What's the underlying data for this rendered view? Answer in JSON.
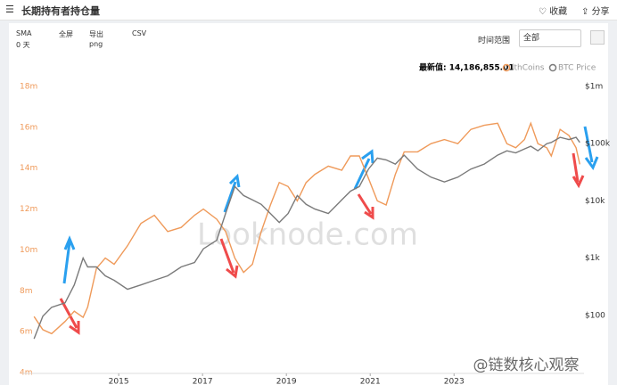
{
  "header": {
    "title": "长期持有者持仓量",
    "favorite": "收藏",
    "share": "分享"
  },
  "toolbar": {
    "sma_label": "SMA",
    "sma_value": "0 天",
    "fullscreen": "全屏",
    "export": "导出",
    "export_format": "png",
    "csv": "CSV",
    "range_label": "时间范围",
    "range_value": "全部"
  },
  "latest": "最新值: 14,186,855.01",
  "watermark": "Looknode.com",
  "source": "@链数核心观察",
  "chart_data": {
    "type": "line",
    "log_y2": true,
    "grid": false,
    "xlim": [
      2012.7,
      2026.1
    ],
    "xticks": [
      2015,
      2017,
      2019,
      2021,
      2023
    ],
    "ylim": [
      4,
      18
    ],
    "yticks": [
      {
        "value": 4,
        "label": "4m"
      },
      {
        "value": 6,
        "label": "6m"
      },
      {
        "value": 8,
        "label": "8m"
      },
      {
        "value": 10,
        "label": "10m"
      },
      {
        "value": 12,
        "label": "12m"
      },
      {
        "value": 14,
        "label": "14m"
      },
      {
        "value": 16,
        "label": "16m"
      },
      {
        "value": 18,
        "label": "18m"
      }
    ],
    "y2lim": [
      10,
      1000000
    ],
    "y2ticks": [
      {
        "value": 100,
        "label": "$100"
      },
      {
        "value": 1000,
        "label": "$1k"
      },
      {
        "value": 10000,
        "label": "$10k"
      },
      {
        "value": 100000,
        "label": "$100k"
      },
      {
        "value": 1000000,
        "label": "$1m"
      }
    ],
    "x": [
      2012.98,
      2013.19,
      2013.4,
      2013.72,
      2013.94,
      2014.15,
      2014.26,
      2014.47,
      2014.68,
      2014.89,
      2015.21,
      2015.53,
      2015.85,
      2016.17,
      2016.49,
      2016.81,
      2017.02,
      2017.34,
      2017.55,
      2017.77,
      2017.98,
      2018.19,
      2018.4,
      2018.62,
      2018.83,
      2019.04,
      2019.26,
      2019.47,
      2019.68,
      2020.0,
      2020.32,
      2020.53,
      2020.74,
      2020.96,
      2021.17,
      2021.38,
      2021.6,
      2021.81,
      2022.13,
      2022.45,
      2022.77,
      2023.09,
      2023.4,
      2023.72,
      2024.04,
      2024.26,
      2024.47,
      2024.68,
      2024.83,
      2025.0,
      2025.21,
      2025.32,
      2025.53,
      2025.74,
      2025.91,
      2026.0
    ],
    "series": [
      {
        "name": "lthCoins",
        "color": "#ef9a5a",
        "values": [
          6.74,
          6.1,
          5.9,
          6.5,
          7.0,
          6.7,
          7.2,
          9.1,
          9.6,
          9.3,
          10.2,
          11.3,
          11.7,
          10.9,
          11.1,
          11.7,
          12.0,
          11.5,
          10.9,
          9.6,
          8.9,
          9.3,
          10.9,
          12.2,
          13.3,
          13.1,
          12.4,
          13.3,
          13.7,
          14.1,
          13.9,
          14.6,
          14.6,
          13.5,
          12.4,
          12.2,
          13.7,
          14.8,
          14.8,
          15.2,
          15.4,
          15.2,
          15.9,
          16.1,
          16.2,
          15.2,
          15.0,
          15.4,
          16.2,
          15.2,
          15.0,
          14.6,
          15.9,
          15.6,
          15.0,
          14.19
        ]
      },
      {
        "name": "BTC Price",
        "color": "#7a7a7a",
        "axis": "y2",
        "values": [
          39,
          96,
          138,
          165,
          340,
          1000,
          700,
          700,
          490,
          410,
          285,
          340,
          410,
          490,
          700,
          840,
          1450,
          2050,
          6000,
          17800,
          12400,
          10400,
          8700,
          6000,
          4200,
          6000,
          12400,
          8700,
          7200,
          6000,
          10400,
          14800,
          17800,
          36000,
          56000,
          52000,
          44000,
          63000,
          36000,
          26000,
          21500,
          26000,
          36000,
          44000,
          63000,
          75000,
          69000,
          81000,
          90000,
          75000,
          100000,
          105000,
          129000,
          118000,
          129000,
          105000
        ]
      }
    ]
  }
}
